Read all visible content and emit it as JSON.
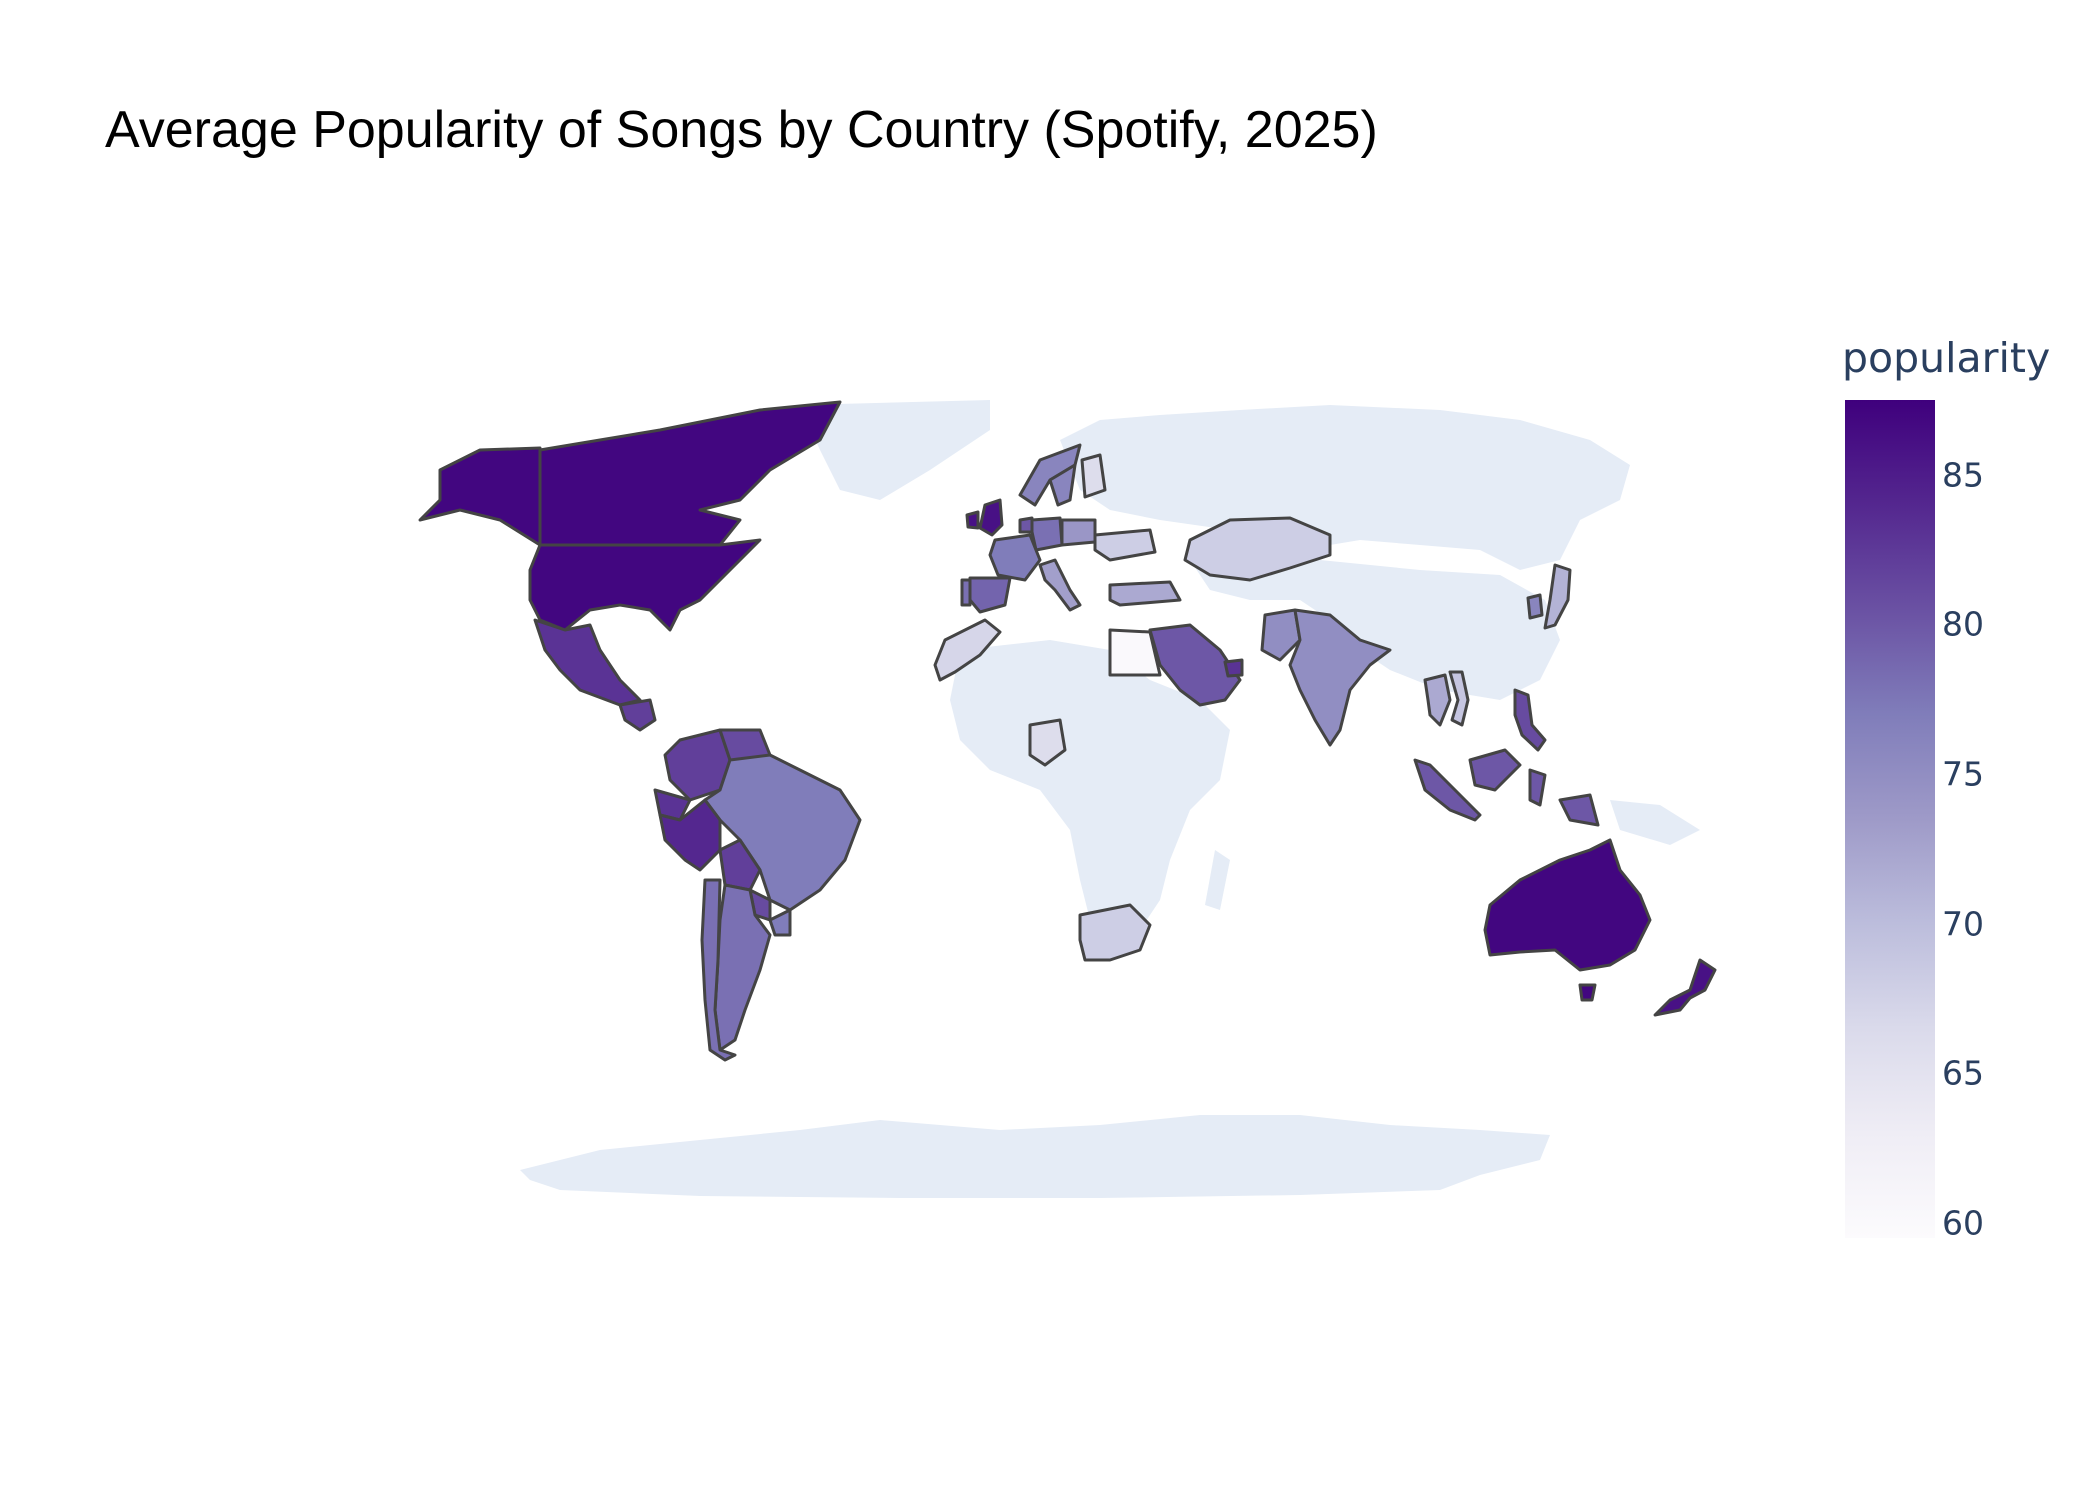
{
  "title": "Average Popularity of Songs by Country (Spotify, 2025)",
  "colorbar": {
    "title": "popularity",
    "range": [
      59.5,
      87.5
    ],
    "ticks": [
      {
        "value": 85,
        "label": "85"
      },
      {
        "value": 80,
        "label": "80"
      },
      {
        "value": 75,
        "label": "75"
      },
      {
        "value": 70,
        "label": "70"
      },
      {
        "value": 65,
        "label": "65"
      },
      {
        "value": 60,
        "label": "60"
      }
    ],
    "colorscale": [
      "#fcfbfd",
      "#efedf5",
      "#dadaeb",
      "#bcbddc",
      "#9e9ac8",
      "#807dba",
      "#6a51a3",
      "#54278f",
      "#3f007d"
    ]
  },
  "colors": {
    "nodata": "#e5ecf6",
    "border": "#444444",
    "tick_text": "#2a3f5f"
  },
  "chart_data": {
    "type": "choropleth",
    "color_variable": "popularity",
    "countries": [
      {
        "name": "Canada",
        "value": 87
      },
      {
        "name": "United States",
        "value": 87
      },
      {
        "name": "Australia",
        "value": 87
      },
      {
        "name": "New Zealand",
        "value": 86
      },
      {
        "name": "United Kingdom",
        "value": 86
      },
      {
        "name": "Ireland",
        "value": 86
      },
      {
        "name": "Mexico",
        "value": 83
      },
      {
        "name": "Guatemala",
        "value": 82
      },
      {
        "name": "Colombia",
        "value": 82
      },
      {
        "name": "Venezuela",
        "value": 81
      },
      {
        "name": "Ecuador",
        "value": 83
      },
      {
        "name": "Peru",
        "value": 84
      },
      {
        "name": "Bolivia",
        "value": 82
      },
      {
        "name": "Paraguay",
        "value": 81
      },
      {
        "name": "Brazil",
        "value": 77
      },
      {
        "name": "Argentina",
        "value": 78
      },
      {
        "name": "Chile",
        "value": 78
      },
      {
        "name": "Uruguay",
        "value": 77
      },
      {
        "name": "Spain",
        "value": 79
      },
      {
        "name": "Portugal",
        "value": 78
      },
      {
        "name": "France",
        "value": 77
      },
      {
        "name": "Germany",
        "value": 78
      },
      {
        "name": "Italy",
        "value": 73
      },
      {
        "name": "Netherlands",
        "value": 80
      },
      {
        "name": "Poland",
        "value": 74
      },
      {
        "name": "Sweden",
        "value": 76
      },
      {
        "name": "Norway",
        "value": 76
      },
      {
        "name": "Finland",
        "value": 66
      },
      {
        "name": "Ukraine",
        "value": 68
      },
      {
        "name": "Turkey",
        "value": 72
      },
      {
        "name": "Morocco",
        "value": 67
      },
      {
        "name": "Egypt",
        "value": 60
      },
      {
        "name": "Saudi Arabia",
        "value": 80
      },
      {
        "name": "United Arab Emirates",
        "value": 83
      },
      {
        "name": "Kazakhstan",
        "value": 68
      },
      {
        "name": "Pakistan",
        "value": 75
      },
      {
        "name": "India",
        "value": 75
      },
      {
        "name": "Japan",
        "value": 71
      },
      {
        "name": "South Korea",
        "value": 76
      },
      {
        "name": "Thailand",
        "value": 72
      },
      {
        "name": "Vietnam",
        "value": 69
      },
      {
        "name": "Malaysia",
        "value": 80
      },
      {
        "name": "Indonesia",
        "value": 80
      },
      {
        "name": "Philippines",
        "value": 81
      },
      {
        "name": "Nigeria",
        "value": 66
      },
      {
        "name": "South Africa",
        "value": 68
      }
    ]
  }
}
